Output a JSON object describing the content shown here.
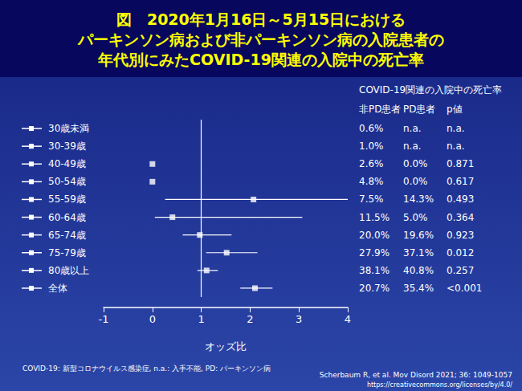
{
  "chart_data": {
    "type": "scatter",
    "title": "図　2020年1月16日～5月15日における\nパーキンソン病および非パーキンソン病の入院患者の\n年代別にみたCOVID-19関連の入院中の死亡率",
    "x_label": "オッズ比",
    "categories": [
      "30歳未満",
      "30-39歳",
      "40-49歳",
      "50-54歳",
      "55-59歳",
      "60-64歳",
      "65-74歳",
      "75-79歳",
      "80歳以上",
      "全体"
    ],
    "values": [
      null,
      null,
      0,
      0,
      2.07,
      0.41,
      0.97,
      1.52,
      1.11,
      2.1
    ],
    "ci_low": [
      null,
      null,
      null,
      null,
      0.26,
      0.05,
      0.62,
      1.1,
      0.92,
      1.8
    ],
    "ci_high": [
      null,
      null,
      null,
      null,
      4.0,
      3.07,
      1.62,
      2.15,
      1.34,
      2.46
    ],
    "color": "#ffffff",
    "marker": "square",
    "xlim": [
      -1,
      4
    ],
    "xticks": [
      -1,
      0,
      1,
      2,
      3,
      4
    ],
    "reference_line": 1,
    "grid": false,
    "table": {
      "title": "COVID-19関連の入院中の死亡率",
      "columns": [
        "非PD患者",
        "PD患者",
        "p値"
      ],
      "rows": [
        [
          "0.6%",
          "n.a.",
          "n.a."
        ],
        [
          "1.0%",
          "n.a.",
          "n.a."
        ],
        [
          "2.6%",
          "0.0%",
          "0.871"
        ],
        [
          "4.8%",
          "0.0%",
          "0.617"
        ],
        [
          "7.5%",
          "14.3%",
          "0.493"
        ],
        [
          "11.5%",
          "5.0%",
          "0.364"
        ],
        [
          "20.0%",
          "19.6%",
          "0.923"
        ],
        [
          "27.9%",
          "37.1%",
          "0.012"
        ],
        [
          "38.1%",
          "40.8%",
          "0.257"
        ],
        [
          "20.7%",
          "35.4%",
          "<0.001"
        ]
      ]
    },
    "notes": [
      "COVID-19: 新型コロナウイルス感染症, n.a.: 入手不能, PD: パーキンソン病",
      "Scherbaum R, et al. Mov Disord 2021; 36: 1049-1057",
      "https://creativecommons.org/licenses/by/4.0/"
    ]
  }
}
